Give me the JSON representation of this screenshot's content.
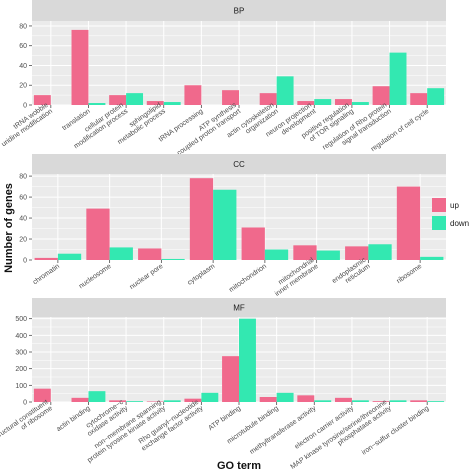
{
  "chart_data": {
    "type": "bar",
    "ylabel": "Number of genes",
    "xlabel": "GO term",
    "colors": {
      "up": "#f0698c",
      "down": "#33e8b1",
      "panel_bg": "#ebebeb",
      "strip_bg": "#d9d9d9",
      "grid": "#ffffff"
    },
    "legend": {
      "placement": "right",
      "entries": [
        {
          "key": "up",
          "label": "up"
        },
        {
          "key": "down",
          "label": "down"
        }
      ]
    },
    "panels": [
      {
        "title": "BP",
        "ylim": [
          0,
          85
        ],
        "yticks": [
          0,
          20,
          40,
          60,
          80
        ],
        "categories": [
          "tRNA wobble\nuridine modification",
          "translation",
          "cellular protein\nmodification process",
          "sphingolipid\nmetabolic process",
          "tRNA processing",
          "ATP synthesis\ncoupled proton transport",
          "actin cytoskeleton\norganization",
          "neuron projection\ndevelopment",
          "positive regulation\nof TOR signaling",
          "regulation of Rho protein\nsignal transduction",
          "regulation of cell cycle"
        ],
        "series": [
          {
            "name": "up",
            "values": [
              10,
              76,
              10,
              4,
              20,
              15,
              12,
              4,
              6,
              19,
              12
            ]
          },
          {
            "name": "down",
            "values": [
              0,
              2,
              12,
              3,
              0,
              0,
              29,
              6,
              3,
              53,
              17
            ]
          }
        ]
      },
      {
        "title": "CC",
        "ylim": [
          0,
          82
        ],
        "yticks": [
          0,
          20,
          40,
          60,
          80
        ],
        "categories": [
          "chromatin",
          "nucleosome",
          "nuclear pore",
          "cytoplasm",
          "mitochondrion",
          "mitochondrial\ninner membrane",
          "endoplasmic\nreticulum",
          "ribosome"
        ],
        "series": [
          {
            "name": "up",
            "values": [
              2,
              49,
              11,
              78,
              31,
              14,
              13,
              70
            ]
          },
          {
            "name": "down",
            "values": [
              6,
              12,
              1,
              67,
              10,
              9,
              15,
              3
            ]
          }
        ]
      },
      {
        "title": "MF",
        "ylim": [
          0,
          510
        ],
        "yticks": [
          0,
          100,
          200,
          300,
          400,
          500
        ],
        "categories": [
          "structural constituent\nof ribosome",
          "actin binding",
          "cytochrome−c\noxidase activity",
          "non−membrane spanning\nprotein tyrosine kinase activity",
          "Rho guanyl−nucleotide\nexchange factor activity",
          "ATP binding",
          "microtubule binding",
          "methyltransferase activity",
          "electron carrier activity",
          "MAP kinase tyrosine/serine/threonine\nphosphatase activity",
          "iron−sulfur cluster binding"
        ],
        "series": [
          {
            "name": "up",
            "values": [
              80,
              25,
              10,
              3,
              20,
              275,
              30,
              40,
              25,
              5,
              10
            ]
          },
          {
            "name": "down",
            "values": [
              0,
              65,
              5,
              10,
              55,
              500,
              55,
              10,
              10,
              10,
              5
            ]
          }
        ]
      }
    ]
  }
}
